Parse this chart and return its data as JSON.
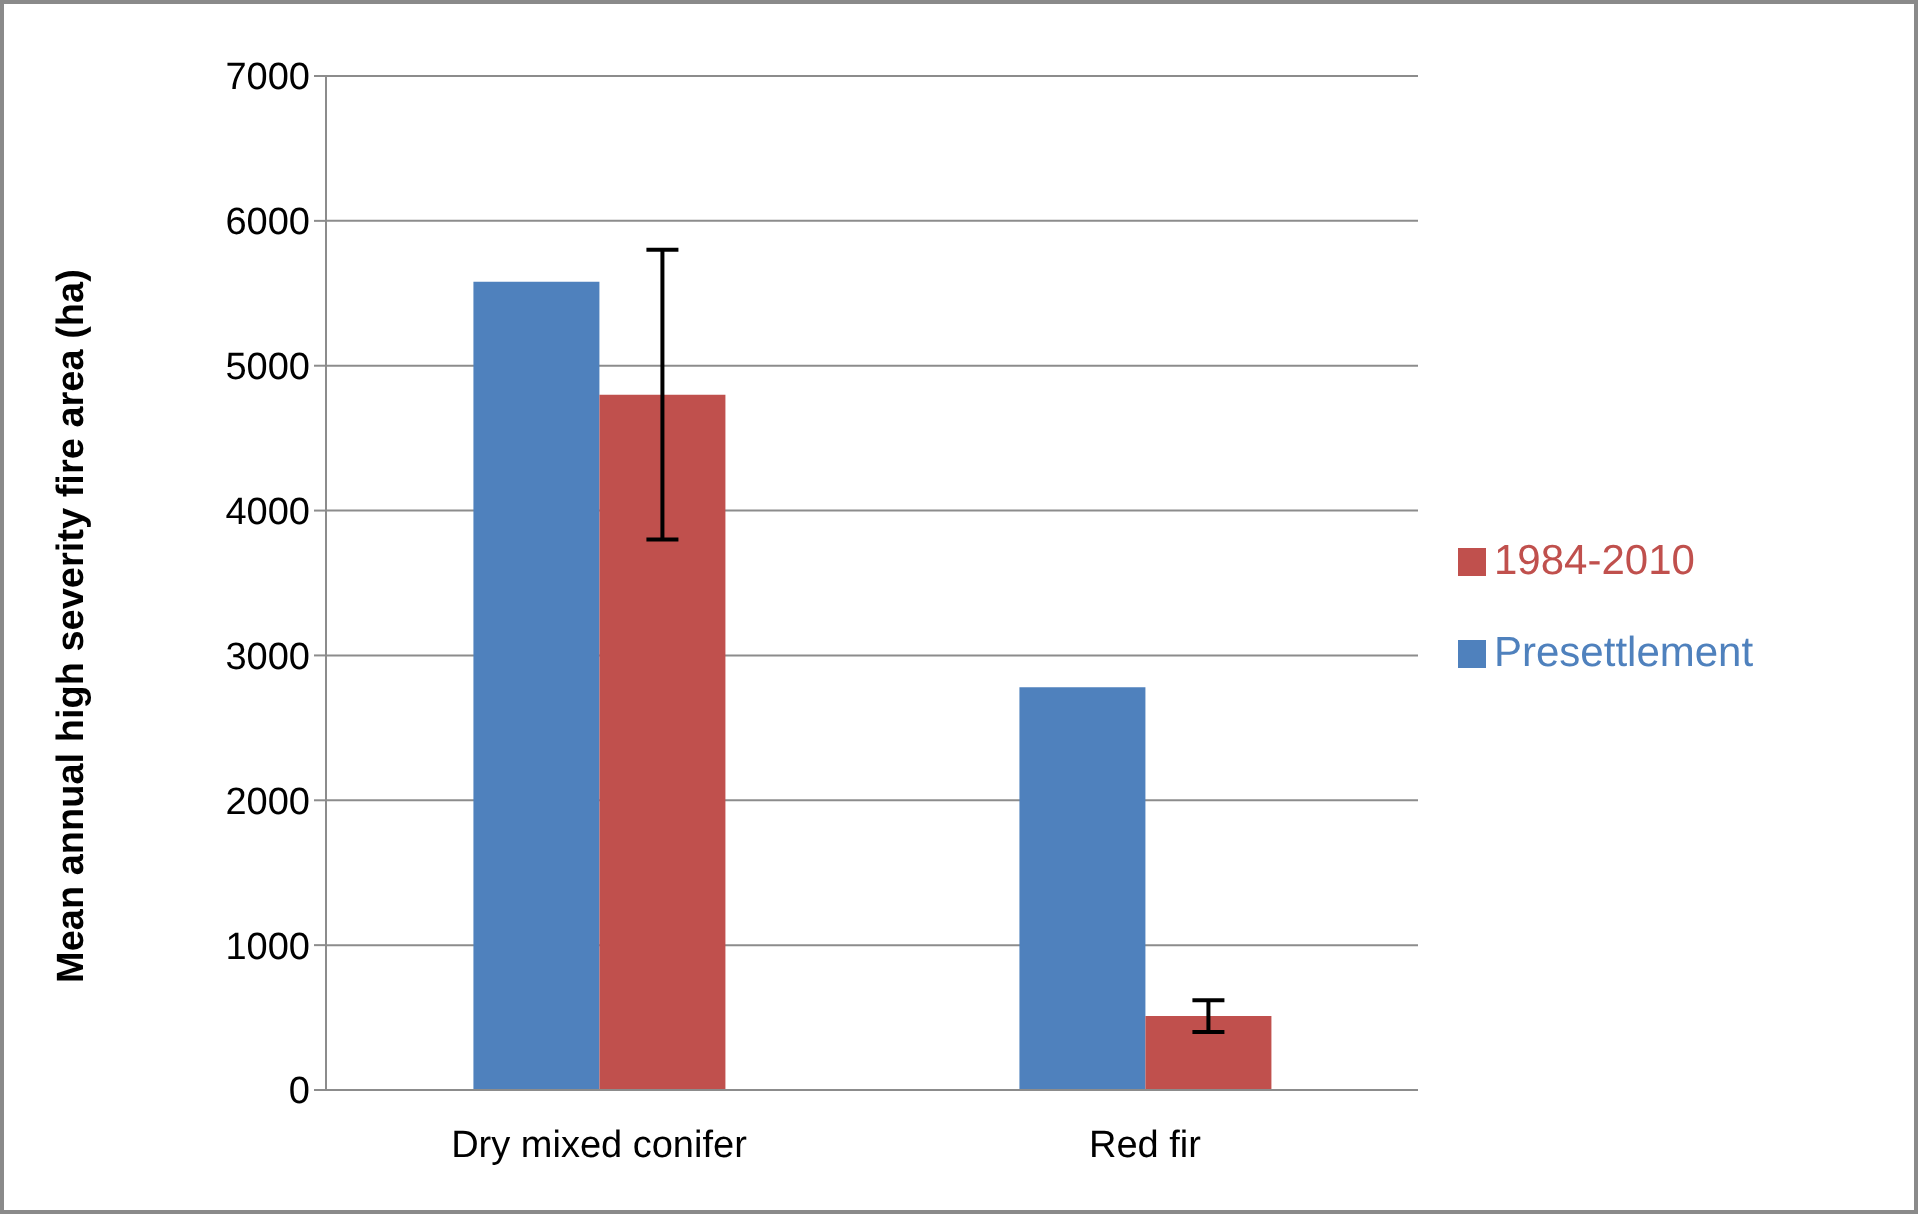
{
  "chart_data": {
    "type": "bar",
    "ylabel": "Mean annual high severity fire area (ha)",
    "categories": [
      "Dry mixed conifer",
      "Red fir"
    ],
    "series": [
      {
        "name": "Presettlement",
        "color": "#4f81bd",
        "values": [
          5580,
          2780
        ]
      },
      {
        "name": "1984-2010",
        "color": "#c0504d",
        "values": [
          4800,
          510
        ],
        "errors": [
          1000,
          110
        ]
      }
    ],
    "ylim": [
      0,
      7000
    ],
    "yticks": [
      0,
      1000,
      2000,
      3000,
      4000,
      5000,
      6000,
      7000
    ],
    "grid": "y",
    "legend": "right"
  }
}
